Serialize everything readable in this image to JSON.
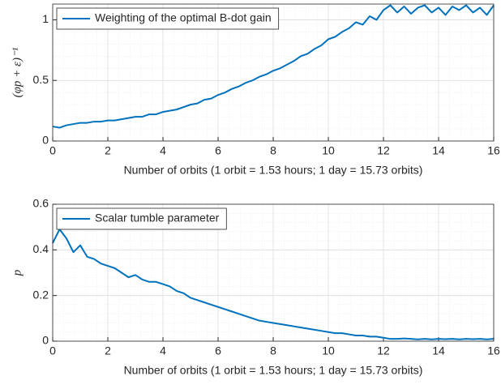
{
  "chart_data": [
    {
      "type": "line",
      "ylabel": "(φp + ε)⁻¹",
      "xlabel": "Number of orbits (1 orbit = 1.53 hours; 1 day = 15.73 orbits)",
      "xlim": [
        0,
        16
      ],
      "xticks": [
        0,
        2,
        4,
        6,
        8,
        10,
        12,
        14,
        16
      ],
      "ylim": [
        0,
        1.13
      ],
      "yticks": [
        0,
        0.5,
        1
      ],
      "grid": true,
      "minor_grid": true,
      "legend": "upper left",
      "x": [
        0,
        0.25,
        0.5,
        0.75,
        1,
        1.25,
        1.5,
        1.75,
        2,
        2.25,
        2.5,
        2.75,
        3,
        3.25,
        3.5,
        3.75,
        4,
        4.25,
        4.5,
        4.75,
        5,
        5.25,
        5.5,
        5.75,
        6,
        6.25,
        6.5,
        6.75,
        7,
        7.25,
        7.5,
        7.75,
        8,
        8.25,
        8.5,
        8.75,
        9,
        9.25,
        9.5,
        9.75,
        10,
        10.25,
        10.5,
        10.75,
        11,
        11.25,
        11.5,
        11.75,
        12,
        12.25,
        12.5,
        12.75,
        13,
        13.25,
        13.5,
        13.75,
        14,
        14.25,
        14.5,
        14.75,
        15,
        15.25,
        15.5,
        15.75,
        16
      ],
      "series": [
        {
          "name": "Weighting of the optimal B-dot gain",
          "color": "#0072bd",
          "values": [
            0.12,
            0.11,
            0.13,
            0.14,
            0.15,
            0.15,
            0.16,
            0.16,
            0.17,
            0.17,
            0.18,
            0.19,
            0.2,
            0.2,
            0.22,
            0.22,
            0.24,
            0.25,
            0.26,
            0.28,
            0.3,
            0.31,
            0.34,
            0.35,
            0.38,
            0.4,
            0.43,
            0.45,
            0.48,
            0.5,
            0.53,
            0.55,
            0.58,
            0.6,
            0.63,
            0.66,
            0.7,
            0.72,
            0.76,
            0.79,
            0.84,
            0.86,
            0.9,
            0.93,
            0.98,
            0.96,
            1.03,
            1.0,
            1.08,
            1.12,
            1.06,
            1.11,
            1.05,
            1.1,
            1.12,
            1.06,
            1.1,
            1.04,
            1.11,
            1.08,
            1.12,
            1.06,
            1.1,
            1.04,
            1.12
          ]
        }
      ]
    },
    {
      "type": "line",
      "ylabel": "p",
      "xlabel": "Number of orbits (1 orbit = 1.53 hours; 1 day = 15.73 orbits)",
      "xlim": [
        0,
        16
      ],
      "xticks": [
        0,
        2,
        4,
        6,
        8,
        10,
        12,
        14,
        16
      ],
      "ylim": [
        0,
        0.6
      ],
      "yticks": [
        0,
        0.2,
        0.4,
        0.6
      ],
      "grid": true,
      "minor_grid": true,
      "legend": "upper left",
      "x": [
        0,
        0.25,
        0.5,
        0.75,
        1,
        1.25,
        1.5,
        1.75,
        2,
        2.25,
        2.5,
        2.75,
        3,
        3.25,
        3.5,
        3.75,
        4,
        4.25,
        4.5,
        4.75,
        5,
        5.25,
        5.5,
        5.75,
        6,
        6.25,
        6.5,
        6.75,
        7,
        7.25,
        7.5,
        7.75,
        8,
        8.25,
        8.5,
        8.75,
        9,
        9.25,
        9.5,
        9.75,
        10,
        10.25,
        10.5,
        10.75,
        11,
        11.25,
        11.5,
        11.75,
        12,
        12.25,
        12.5,
        12.75,
        13,
        13.25,
        13.5,
        13.75,
        14,
        14.25,
        14.5,
        14.75,
        15,
        15.25,
        15.5,
        15.75,
        16
      ],
      "series": [
        {
          "name": "Scalar tumble parameter",
          "color": "#0072bd",
          "values": [
            0.43,
            0.49,
            0.45,
            0.39,
            0.42,
            0.37,
            0.36,
            0.34,
            0.33,
            0.32,
            0.3,
            0.28,
            0.29,
            0.27,
            0.26,
            0.26,
            0.25,
            0.24,
            0.22,
            0.21,
            0.19,
            0.18,
            0.17,
            0.16,
            0.15,
            0.14,
            0.13,
            0.12,
            0.11,
            0.1,
            0.09,
            0.085,
            0.08,
            0.075,
            0.07,
            0.065,
            0.06,
            0.055,
            0.05,
            0.045,
            0.04,
            0.035,
            0.035,
            0.03,
            0.025,
            0.025,
            0.02,
            0.02,
            0.015,
            0.01,
            0.01,
            0.012,
            0.01,
            0.008,
            0.01,
            0.008,
            0.01,
            0.009,
            0.01,
            0.008,
            0.01,
            0.009,
            0.01,
            0.008,
            0.01
          ]
        }
      ]
    }
  ]
}
